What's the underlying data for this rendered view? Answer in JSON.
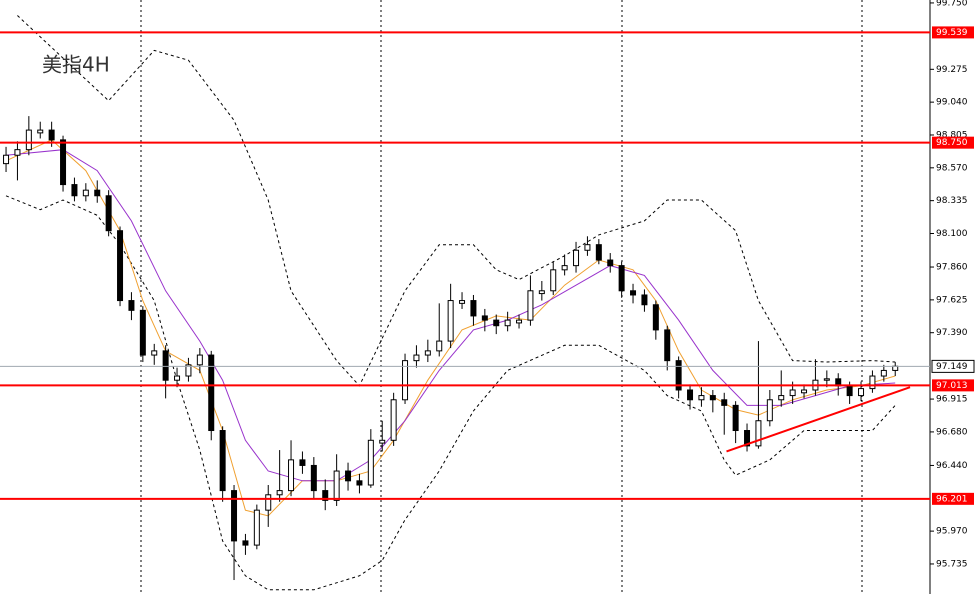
{
  "chart_data": {
    "type": "candlestick",
    "title": "美指4H",
    "open": [
      98.6,
      98.66,
      98.7,
      98.82,
      98.84,
      98.77,
      98.45,
      98.37,
      98.41,
      98.37,
      98.12,
      97.62,
      97.55,
      97.23,
      97.26,
      97.05,
      97.08,
      97.16,
      97.23,
      96.69,
      96.26,
      95.9,
      95.87,
      96.12,
      96.23,
      96.26,
      96.48,
      96.44,
      96.26,
      96.19,
      96.4,
      96.33,
      96.3,
      96.6,
      96.62,
      96.91,
      97.19,
      97.23,
      97.26,
      97.33,
      97.6,
      97.62,
      97.51,
      97.48,
      97.44,
      97.46,
      97.48,
      97.67,
      97.69,
      97.84,
      97.87,
      97.98,
      98.02,
      97.91,
      97.87,
      97.69,
      97.66,
      97.59,
      97.41,
      97.19,
      96.98,
      96.91,
      96.94,
      96.91,
      96.87,
      96.69,
      96.58,
      96.76,
      96.91,
      96.94,
      96.96,
      96.98,
      97.05,
      97.06,
      97.01,
      96.94,
      96.99,
      97.08,
      97.12
    ],
    "high": [
      98.72,
      98.76,
      98.94,
      98.9,
      98.9,
      98.8,
      98.5,
      98.46,
      98.48,
      98.41,
      98.15,
      97.68,
      97.58,
      97.31,
      97.3,
      97.14,
      97.21,
      97.28,
      97.26,
      96.72,
      96.3,
      95.95,
      96.16,
      96.3,
      96.55,
      96.62,
      96.54,
      96.5,
      96.34,
      96.52,
      96.46,
      96.38,
      96.7,
      96.76,
      96.96,
      97.24,
      97.3,
      97.34,
      97.6,
      97.74,
      97.68,
      97.66,
      97.56,
      97.52,
      97.54,
      97.52,
      97.8,
      97.76,
      97.9,
      97.95,
      98.04,
      98.08,
      98.06,
      97.96,
      97.9,
      97.74,
      97.7,
      97.62,
      97.44,
      97.22,
      97.02,
      97.0,
      96.98,
      96.96,
      96.9,
      96.74,
      97.33,
      96.98,
      97.12,
      97.04,
      97.02,
      97.2,
      97.12,
      97.1,
      97.04,
      97.04,
      97.12,
      97.16,
      97.18
    ],
    "low": [
      98.54,
      98.48,
      98.66,
      98.78,
      98.72,
      98.4,
      98.33,
      98.33,
      98.32,
      98.08,
      97.58,
      97.48,
      97.18,
      97.16,
      96.92,
      97.0,
      97.04,
      97.1,
      96.62,
      96.18,
      95.62,
      95.8,
      95.84,
      96.0,
      96.18,
      96.22,
      96.38,
      96.2,
      96.12,
      96.15,
      96.26,
      96.24,
      96.28,
      96.54,
      96.58,
      96.88,
      97.14,
      97.18,
      97.22,
      97.28,
      97.56,
      97.44,
      97.4,
      97.38,
      97.4,
      97.42,
      97.44,
      97.62,
      97.66,
      97.8,
      97.82,
      97.94,
      97.88,
      97.82,
      97.64,
      97.6,
      97.54,
      97.34,
      97.12,
      96.92,
      96.84,
      96.86,
      96.82,
      96.66,
      96.6,
      96.54,
      96.56,
      96.72,
      96.86,
      96.88,
      96.92,
      96.94,
      97.0,
      96.94,
      96.88,
      96.9,
      96.96,
      97.04,
      97.08
    ],
    "close": [
      98.66,
      98.7,
      98.84,
      98.84,
      98.77,
      98.45,
      98.37,
      98.41,
      98.37,
      98.12,
      97.62,
      97.55,
      97.23,
      97.26,
      97.05,
      97.08,
      97.16,
      97.23,
      96.69,
      96.26,
      95.9,
      95.87,
      96.12,
      96.23,
      96.26,
      96.48,
      96.44,
      96.26,
      96.19,
      96.4,
      96.33,
      96.3,
      96.62,
      96.62,
      96.91,
      97.19,
      97.23,
      97.26,
      97.33,
      97.62,
      97.62,
      97.51,
      97.48,
      97.44,
      97.48,
      97.48,
      97.69,
      97.69,
      97.84,
      97.87,
      97.98,
      98.02,
      97.91,
      97.87,
      97.69,
      97.66,
      97.59,
      97.41,
      97.19,
      96.98,
      96.91,
      96.94,
      96.91,
      96.87,
      96.69,
      96.58,
      96.76,
      96.91,
      96.94,
      96.98,
      96.98,
      97.05,
      97.06,
      97.01,
      96.94,
      96.99,
      97.08,
      97.12,
      97.15
    ],
    "overlays": [
      {
        "color": "#000000",
        "dashed": true,
        "x": [
          1,
          9,
          13,
          16,
          20,
          23,
          25,
          29,
          31,
          35,
          38,
          41,
          43,
          45,
          49,
          52,
          56,
          58,
          61,
          64,
          66,
          69,
          72,
          76,
          78
        ],
        "values": [
          99.66,
          99.05,
          99.41,
          99.34,
          98.91,
          98.34,
          97.69,
          97.19,
          97.01,
          97.69,
          98.02,
          98.02,
          97.84,
          97.77,
          97.94,
          98.09,
          98.19,
          98.34,
          98.34,
          98.12,
          97.62,
          97.19,
          97.18,
          97.19,
          97.18
        ]
      },
      {
        "color": "#000000",
        "dashed": true,
        "x": [
          0,
          3,
          5,
          8,
          10,
          13,
          15,
          17,
          19,
          21,
          23,
          27,
          31,
          33,
          35,
          38,
          41,
          44,
          49,
          52,
          56,
          58,
          61,
          63,
          64,
          67,
          70,
          73,
          76,
          78
        ],
        "values": [
          98.37,
          98.27,
          98.34,
          98.23,
          98.02,
          97.62,
          97.05,
          96.55,
          95.9,
          95.65,
          95.55,
          95.55,
          95.65,
          95.76,
          96.05,
          96.4,
          96.83,
          97.12,
          97.3,
          97.3,
          97.12,
          96.94,
          96.83,
          96.48,
          96.37,
          96.48,
          96.69,
          96.69,
          96.69,
          96.87
        ]
      },
      {
        "color": "#f0a030",
        "dashed": false,
        "x": [
          0,
          4,
          7,
          10,
          12,
          14,
          17,
          19,
          21,
          23,
          26,
          29,
          32,
          34,
          37,
          40,
          43,
          46,
          49,
          52,
          55,
          57,
          59,
          61,
          64,
          66,
          69,
          72,
          75,
          78
        ],
        "values": [
          98.62,
          98.77,
          98.55,
          98.12,
          97.62,
          97.26,
          97.12,
          96.69,
          96.12,
          96.08,
          96.33,
          96.33,
          96.4,
          96.62,
          97.05,
          97.41,
          97.51,
          97.48,
          97.73,
          97.91,
          97.84,
          97.62,
          97.26,
          96.98,
          96.84,
          96.8,
          96.91,
          96.98,
          97.01,
          97.08
        ]
      },
      {
        "color": "#9933cc",
        "dashed": false,
        "x": [
          0,
          5,
          8,
          11,
          14,
          17,
          19,
          21,
          23,
          26,
          29,
          32,
          35,
          38,
          41,
          44,
          47,
          50,
          53,
          56,
          59,
          62,
          65,
          68,
          71,
          74,
          78
        ],
        "values": [
          98.66,
          98.7,
          98.55,
          98.19,
          97.69,
          97.33,
          97.05,
          96.62,
          96.4,
          96.33,
          96.33,
          96.48,
          96.76,
          97.12,
          97.41,
          97.48,
          97.59,
          97.73,
          97.87,
          97.8,
          97.48,
          97.12,
          96.87,
          96.87,
          96.94,
          97.01,
          97.03
        ]
      }
    ],
    "trendline": {
      "color": "#ff0000",
      "x": [
        63.2,
        79.3
      ],
      "values": [
        96.54,
        97.0
      ]
    },
    "levels": [
      99.539,
      {
        "value": 98.75,
        "label": "98.750"
      },
      97.013,
      96.201
    ],
    "level_color": "#ff0000",
    "last_price": 97.149,
    "xlim": [
      -0.53,
      81.05
    ],
    "ylim": [
      95.52,
      99.771
    ],
    "yticks": [
      {
        "value": 99.75,
        "label": "99.750"
      },
      99.275,
      {
        "value": 99.04,
        "label": "99.040"
      },
      98.805,
      {
        "value": 98.57,
        "label": "98.570"
      },
      98.335,
      {
        "value": 98.1,
        "label": "98.100"
      },
      {
        "value": 97.86,
        "label": "97.860"
      },
      97.625,
      {
        "value": 97.39,
        "label": "97.390"
      },
      96.915,
      {
        "value": 96.68,
        "label": "96.680"
      },
      {
        "value": 96.44,
        "label": "96.440"
      },
      {
        "value": 95.97,
        "label": "95.970"
      },
      95.735
    ]
  }
}
